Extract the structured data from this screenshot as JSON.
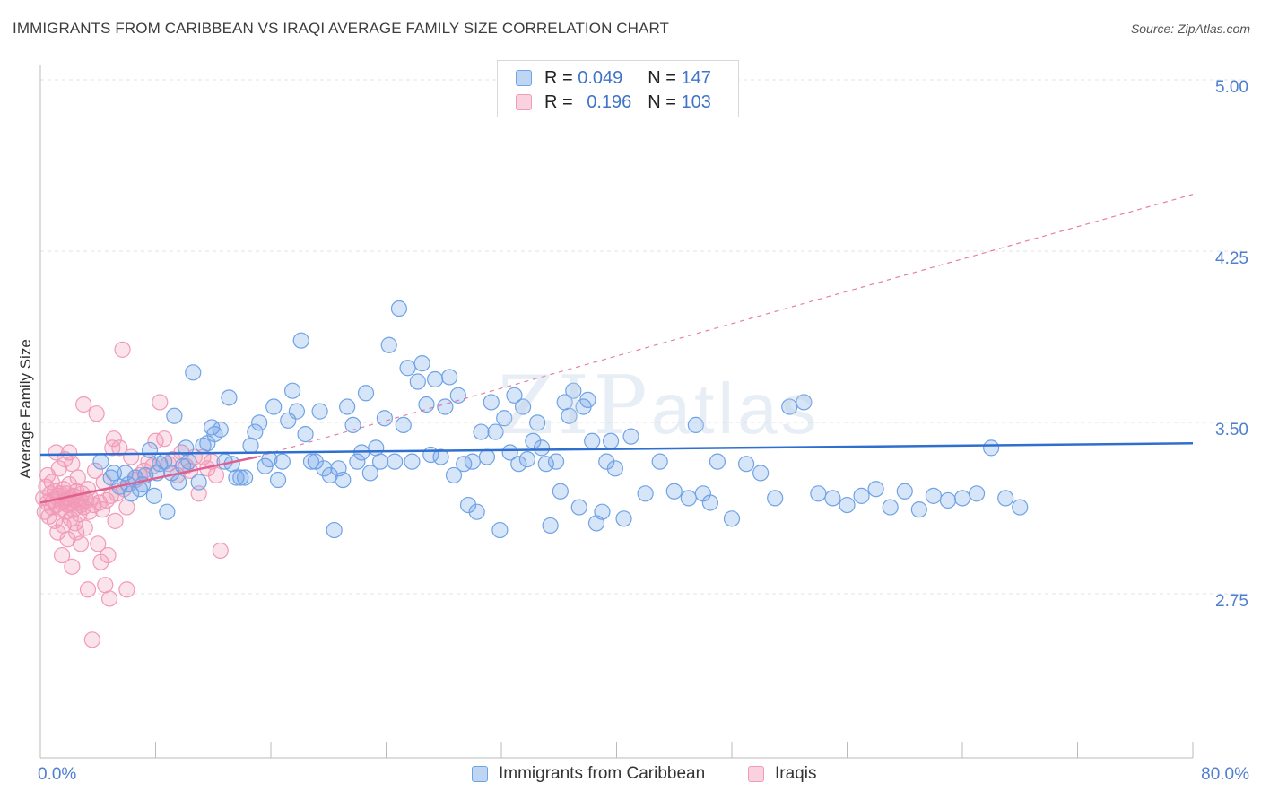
{
  "title": "IMMIGRANTS FROM CARIBBEAN VS IRAQI AVERAGE FAMILY SIZE CORRELATION CHART",
  "source": "Source: ZipAtlas.com",
  "watermark": {
    "zip": "ZIP",
    "atlas": "atlas"
  },
  "legend": {
    "rows": [
      {
        "r_label": "R =",
        "r_value": "0.049",
        "n_label": "N =",
        "n_value": "147"
      },
      {
        "r_label": "R =",
        "r_value": "0.196",
        "n_label": "N =",
        "n_value": "103"
      }
    ]
  },
  "chart_data": {
    "type": "scatter",
    "title": "IMMIGRANTS FROM CARIBBEAN VS IRAQI AVERAGE FAMILY SIZE CORRELATION CHART",
    "xlabel": "",
    "ylabel": "Average Family Size",
    "xlim": [
      0,
      80
    ],
    "ylim": [
      2.4,
      5.1
    ],
    "x_tick_labels": [
      "0.0%",
      "80.0%"
    ],
    "y_ticks": [
      2.75,
      3.5,
      4.25,
      5.0
    ],
    "y_tick_labels": [
      "2.75",
      "3.50",
      "4.25",
      "5.00"
    ],
    "grid": "horizontal-dashed",
    "legend_position": "top-center",
    "colors": {
      "blue": "#6fa3e6",
      "blue_line": "#2f6fd0",
      "pink": "#f29ab8",
      "pink_line": "#e06090"
    },
    "series": [
      {
        "name": "Immigrants from Caribbean",
        "color": "blue",
        "trend": {
          "x": [
            0,
            80
          ],
          "y": [
            3.39,
            3.44
          ]
        },
        "points": [
          [
            4.2,
            3.36
          ],
          [
            4.9,
            3.29
          ],
          [
            5.1,
            3.31
          ],
          [
            5.5,
            3.25
          ],
          [
            5.9,
            3.31
          ],
          [
            6.1,
            3.26
          ],
          [
            6.3,
            3.22
          ],
          [
            6.6,
            3.29
          ],
          [
            6.9,
            3.24
          ],
          [
            7.1,
            3.26
          ],
          [
            7.3,
            3.3
          ],
          [
            7.6,
            3.41
          ],
          [
            7.9,
            3.21
          ],
          [
            8.1,
            3.31
          ],
          [
            8.3,
            3.35
          ],
          [
            8.6,
            3.36
          ],
          [
            8.8,
            3.14
          ],
          [
            9.1,
            3.31
          ],
          [
            9.3,
            3.56
          ],
          [
            9.6,
            3.27
          ],
          [
            9.9,
            3.34
          ],
          [
            10.1,
            3.42
          ],
          [
            10.3,
            3.36
          ],
          [
            10.6,
            3.75
          ],
          [
            11.0,
            3.27
          ],
          [
            11.3,
            3.43
          ],
          [
            11.6,
            3.44
          ],
          [
            11.9,
            3.51
          ],
          [
            12.1,
            3.48
          ],
          [
            12.5,
            3.5
          ],
          [
            12.8,
            3.36
          ],
          [
            13.1,
            3.64
          ],
          [
            13.3,
            3.35
          ],
          [
            13.6,
            3.29
          ],
          [
            13.9,
            3.29
          ],
          [
            14.2,
            3.29
          ],
          [
            14.6,
            3.43
          ],
          [
            14.9,
            3.49
          ],
          [
            15.2,
            3.53
          ],
          [
            15.6,
            3.34
          ],
          [
            15.9,
            3.37
          ],
          [
            16.2,
            3.6
          ],
          [
            16.5,
            3.28
          ],
          [
            16.8,
            3.36
          ],
          [
            17.2,
            3.54
          ],
          [
            17.5,
            3.67
          ],
          [
            17.8,
            3.58
          ],
          [
            18.1,
            3.89
          ],
          [
            18.4,
            3.48
          ],
          [
            18.8,
            3.36
          ],
          [
            19.1,
            3.36
          ],
          [
            19.4,
            3.58
          ],
          [
            19.7,
            3.33
          ],
          [
            20.1,
            3.3
          ],
          [
            20.4,
            3.06
          ],
          [
            20.7,
            3.33
          ],
          [
            21.0,
            3.28
          ],
          [
            21.3,
            3.6
          ],
          [
            21.7,
            3.52
          ],
          [
            22.0,
            3.36
          ],
          [
            22.3,
            3.4
          ],
          [
            22.6,
            3.66
          ],
          [
            22.9,
            3.31
          ],
          [
            23.3,
            3.42
          ],
          [
            23.6,
            3.36
          ],
          [
            23.9,
            3.55
          ],
          [
            24.2,
            3.87
          ],
          [
            24.6,
            3.36
          ],
          [
            24.9,
            4.03
          ],
          [
            25.2,
            3.52
          ],
          [
            25.5,
            3.77
          ],
          [
            25.8,
            3.36
          ],
          [
            26.2,
            3.71
          ],
          [
            26.5,
            3.79
          ],
          [
            26.8,
            3.61
          ],
          [
            27.1,
            3.39
          ],
          [
            27.4,
            3.72
          ],
          [
            27.8,
            3.38
          ],
          [
            28.1,
            3.6
          ],
          [
            28.4,
            3.73
          ],
          [
            28.7,
            3.3
          ],
          [
            29.0,
            3.65
          ],
          [
            29.4,
            3.35
          ],
          [
            29.7,
            3.17
          ],
          [
            30.0,
            3.36
          ],
          [
            30.3,
            3.14
          ],
          [
            30.6,
            3.49
          ],
          [
            31.0,
            3.38
          ],
          [
            31.3,
            3.62
          ],
          [
            31.6,
            3.49
          ],
          [
            31.9,
            3.06
          ],
          [
            32.2,
            3.55
          ],
          [
            32.6,
            3.4
          ],
          [
            32.9,
            3.65
          ],
          [
            33.2,
            3.35
          ],
          [
            33.5,
            3.6
          ],
          [
            33.8,
            3.37
          ],
          [
            34.2,
            3.45
          ],
          [
            34.5,
            3.53
          ],
          [
            34.8,
            3.42
          ],
          [
            35.1,
            3.35
          ],
          [
            35.4,
            3.08
          ],
          [
            35.8,
            3.36
          ],
          [
            36.1,
            3.23
          ],
          [
            36.4,
            3.62
          ],
          [
            36.7,
            3.56
          ],
          [
            37.0,
            3.67
          ],
          [
            37.4,
            3.16
          ],
          [
            37.7,
            3.6
          ],
          [
            38.0,
            3.63
          ],
          [
            38.3,
            3.45
          ],
          [
            38.6,
            3.09
          ],
          [
            39.0,
            3.14
          ],
          [
            39.3,
            3.36
          ],
          [
            39.6,
            3.45
          ],
          [
            39.9,
            3.33
          ],
          [
            40.5,
            3.11
          ],
          [
            41.0,
            3.47
          ],
          [
            42.0,
            3.22
          ],
          [
            43.0,
            3.36
          ],
          [
            44.0,
            3.23
          ],
          [
            45.0,
            3.2
          ],
          [
            45.5,
            3.52
          ],
          [
            46.0,
            3.22
          ],
          [
            46.5,
            3.18
          ],
          [
            47.0,
            3.36
          ],
          [
            48.0,
            3.11
          ],
          [
            49.0,
            3.35
          ],
          [
            50.0,
            3.31
          ],
          [
            51.0,
            3.2
          ],
          [
            52.0,
            3.6
          ],
          [
            53.0,
            3.62
          ],
          [
            54.0,
            3.22
          ],
          [
            55.0,
            3.2
          ],
          [
            56.0,
            3.17
          ],
          [
            57.0,
            3.21
          ],
          [
            58.0,
            3.24
          ],
          [
            59.0,
            3.16
          ],
          [
            60.0,
            3.23
          ],
          [
            61.0,
            3.15
          ],
          [
            62.0,
            3.21
          ],
          [
            63.0,
            3.19
          ],
          [
            64.0,
            3.2
          ],
          [
            65.0,
            3.22
          ],
          [
            66.0,
            3.42
          ],
          [
            67.0,
            3.2
          ],
          [
            68.0,
            3.16
          ]
        ]
      },
      {
        "name": "Iraqis",
        "color": "pink",
        "trend": {
          "x": [
            0,
            15
          ],
          "y": [
            3.18,
            3.38
          ]
        },
        "trend_dashed": {
          "x": [
            15,
            80
          ],
          "y": [
            3.38,
            4.53
          ]
        },
        "points": [
          [
            0.2,
            3.2
          ],
          [
            0.3,
            3.14
          ],
          [
            0.4,
            3.25
          ],
          [
            0.5,
            3.18
          ],
          [
            0.5,
            3.3
          ],
          [
            0.6,
            3.12
          ],
          [
            0.7,
            3.22
          ],
          [
            0.8,
            3.16
          ],
          [
            0.8,
            3.27
          ],
          [
            0.9,
            3.19
          ],
          [
            1.0,
            3.1
          ],
          [
            1.0,
            3.23
          ],
          [
            1.1,
            3.4
          ],
          [
            1.1,
            3.17
          ],
          [
            1.2,
            3.2
          ],
          [
            1.2,
            3.05
          ],
          [
            1.3,
            3.21
          ],
          [
            1.3,
            3.33
          ],
          [
            1.4,
            3.15
          ],
          [
            1.4,
            3.22
          ],
          [
            1.5,
            2.95
          ],
          [
            1.5,
            3.18
          ],
          [
            1.6,
            3.24
          ],
          [
            1.6,
            3.08
          ],
          [
            1.7,
            3.19
          ],
          [
            1.7,
            3.37
          ],
          [
            1.8,
            3.14
          ],
          [
            1.8,
            3.22
          ],
          [
            1.9,
            3.02
          ],
          [
            1.9,
            3.17
          ],
          [
            2.0,
            3.2
          ],
          [
            2.0,
            3.26
          ],
          [
            2.1,
            3.11
          ],
          [
            2.1,
            3.18
          ],
          [
            2.2,
            2.9
          ],
          [
            2.2,
            3.35
          ],
          [
            2.3,
            3.21
          ],
          [
            2.3,
            3.15
          ],
          [
            2.4,
            3.09
          ],
          [
            2.4,
            3.19
          ],
          [
            2.5,
            3.23
          ],
          [
            2.5,
            3.05
          ],
          [
            2.6,
            3.18
          ],
          [
            2.6,
            3.29
          ],
          [
            2.7,
            3.13
          ],
          [
            2.7,
            3.2
          ],
          [
            2.8,
            3.0
          ],
          [
            2.8,
            3.17
          ],
          [
            2.9,
            3.22
          ],
          [
            3.0,
            3.16
          ],
          [
            3.0,
            3.61
          ],
          [
            3.1,
            3.07
          ],
          [
            3.2,
            3.19
          ],
          [
            3.3,
            2.8
          ],
          [
            3.3,
            3.24
          ],
          [
            3.4,
            3.14
          ],
          [
            3.5,
            3.2
          ],
          [
            3.6,
            2.58
          ],
          [
            3.7,
            3.17
          ],
          [
            3.8,
            3.32
          ],
          [
            3.9,
            3.57
          ],
          [
            4.0,
            3.0
          ],
          [
            4.1,
            3.18
          ],
          [
            4.2,
            2.92
          ],
          [
            4.3,
            3.15
          ],
          [
            4.4,
            3.27
          ],
          [
            4.5,
            2.82
          ],
          [
            4.6,
            3.19
          ],
          [
            4.7,
            2.95
          ],
          [
            4.8,
            2.76
          ],
          [
            4.9,
            3.21
          ],
          [
            5.0,
            3.42
          ],
          [
            5.1,
            3.46
          ],
          [
            5.2,
            3.1
          ],
          [
            5.3,
            3.22
          ],
          [
            5.5,
            3.42
          ],
          [
            5.7,
            3.85
          ],
          [
            5.8,
            3.24
          ],
          [
            6.0,
            3.16
          ],
          [
            6.3,
            3.38
          ],
          [
            6.6,
            3.28
          ],
          [
            6.9,
            3.3
          ],
          [
            7.2,
            3.32
          ],
          [
            7.5,
            3.36
          ],
          [
            7.8,
            3.34
          ],
          [
            8.0,
            3.45
          ],
          [
            8.3,
            3.62
          ],
          [
            8.6,
            3.46
          ],
          [
            8.9,
            3.35
          ],
          [
            9.2,
            3.37
          ],
          [
            9.5,
            3.3
          ],
          [
            9.8,
            3.4
          ],
          [
            10.1,
            3.34
          ],
          [
            10.4,
            3.32
          ],
          [
            10.7,
            3.38
          ],
          [
            11.0,
            3.22
          ],
          [
            11.3,
            3.38
          ],
          [
            11.6,
            3.33
          ],
          [
            11.9,
            3.36
          ],
          [
            12.2,
            3.3
          ],
          [
            12.5,
            2.97
          ],
          [
            6.0,
            2.8
          ],
          [
            2.0,
            3.4
          ]
        ]
      }
    ]
  },
  "bottom_legend": [
    {
      "label": "Immigrants from Caribbean"
    },
    {
      "label": "Iraqis"
    }
  ]
}
